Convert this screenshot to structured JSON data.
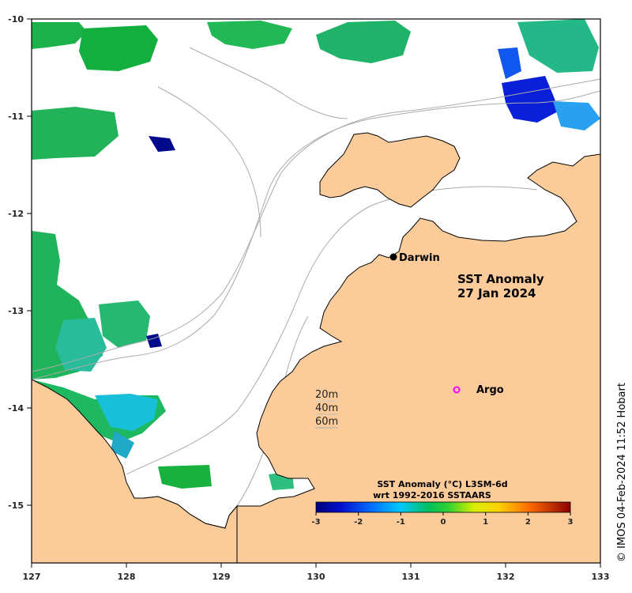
{
  "map": {
    "title_line1": "SST Anomaly",
    "title_line2": "27 Jan 2024",
    "lon_ticks": [
      "127",
      "128",
      "129",
      "130",
      "131",
      "132",
      "133"
    ],
    "lat_ticks": [
      "-10",
      "-11",
      "-12",
      "-13",
      "-14",
      "-15"
    ],
    "places": {
      "darwin": "Darwin",
      "argo": "Argo"
    },
    "depth_legend": [
      "20m",
      "40m",
      "60m"
    ],
    "colorbar": {
      "title_line1": "SST Anomaly (°C) L3SM-6d",
      "title_line2": "wrt 1992-2016 SSTAARS",
      "ticks": [
        "-3",
        "-2",
        "-1",
        "0",
        "1",
        "2",
        "3"
      ],
      "range": [
        -3,
        3
      ]
    },
    "credit": "© IMOS 04-Feb-2024 11:52 Hobart",
    "colors": {
      "land": "#fccb9a",
      "ocean": "#ffffff",
      "argo": "#ff00ff",
      "bathymetry": "#aaaaaa"
    }
  }
}
